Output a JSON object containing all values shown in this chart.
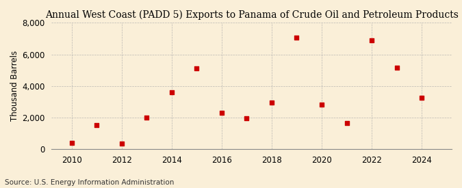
{
  "title": "Annual West Coast (PADD 5) Exports to Panama of Crude Oil and Petroleum Products",
  "ylabel": "Thousand Barrels",
  "source": "Source: U.S. Energy Information Administration",
  "years": [
    2010,
    2011,
    2012,
    2013,
    2014,
    2015,
    2016,
    2017,
    2018,
    2019,
    2020,
    2021,
    2022,
    2023,
    2024
  ],
  "values": [
    400,
    1500,
    350,
    2000,
    3600,
    5100,
    2300,
    1950,
    2950,
    7050,
    2800,
    1650,
    6900,
    5150,
    3250
  ],
  "marker_color": "#cc0000",
  "marker": "s",
  "marker_size": 4,
  "bg_color": "#faefd8",
  "grid_color": "#aaaaaa",
  "ylim": [
    0,
    8000
  ],
  "yticks": [
    0,
    2000,
    4000,
    6000,
    8000
  ],
  "xticks": [
    2010,
    2012,
    2014,
    2016,
    2018,
    2020,
    2022,
    2024
  ],
  "xlim": [
    2009.2,
    2025.2
  ],
  "title_fontsize": 10,
  "label_fontsize": 8.5,
  "tick_fontsize": 8.5,
  "source_fontsize": 7.5
}
